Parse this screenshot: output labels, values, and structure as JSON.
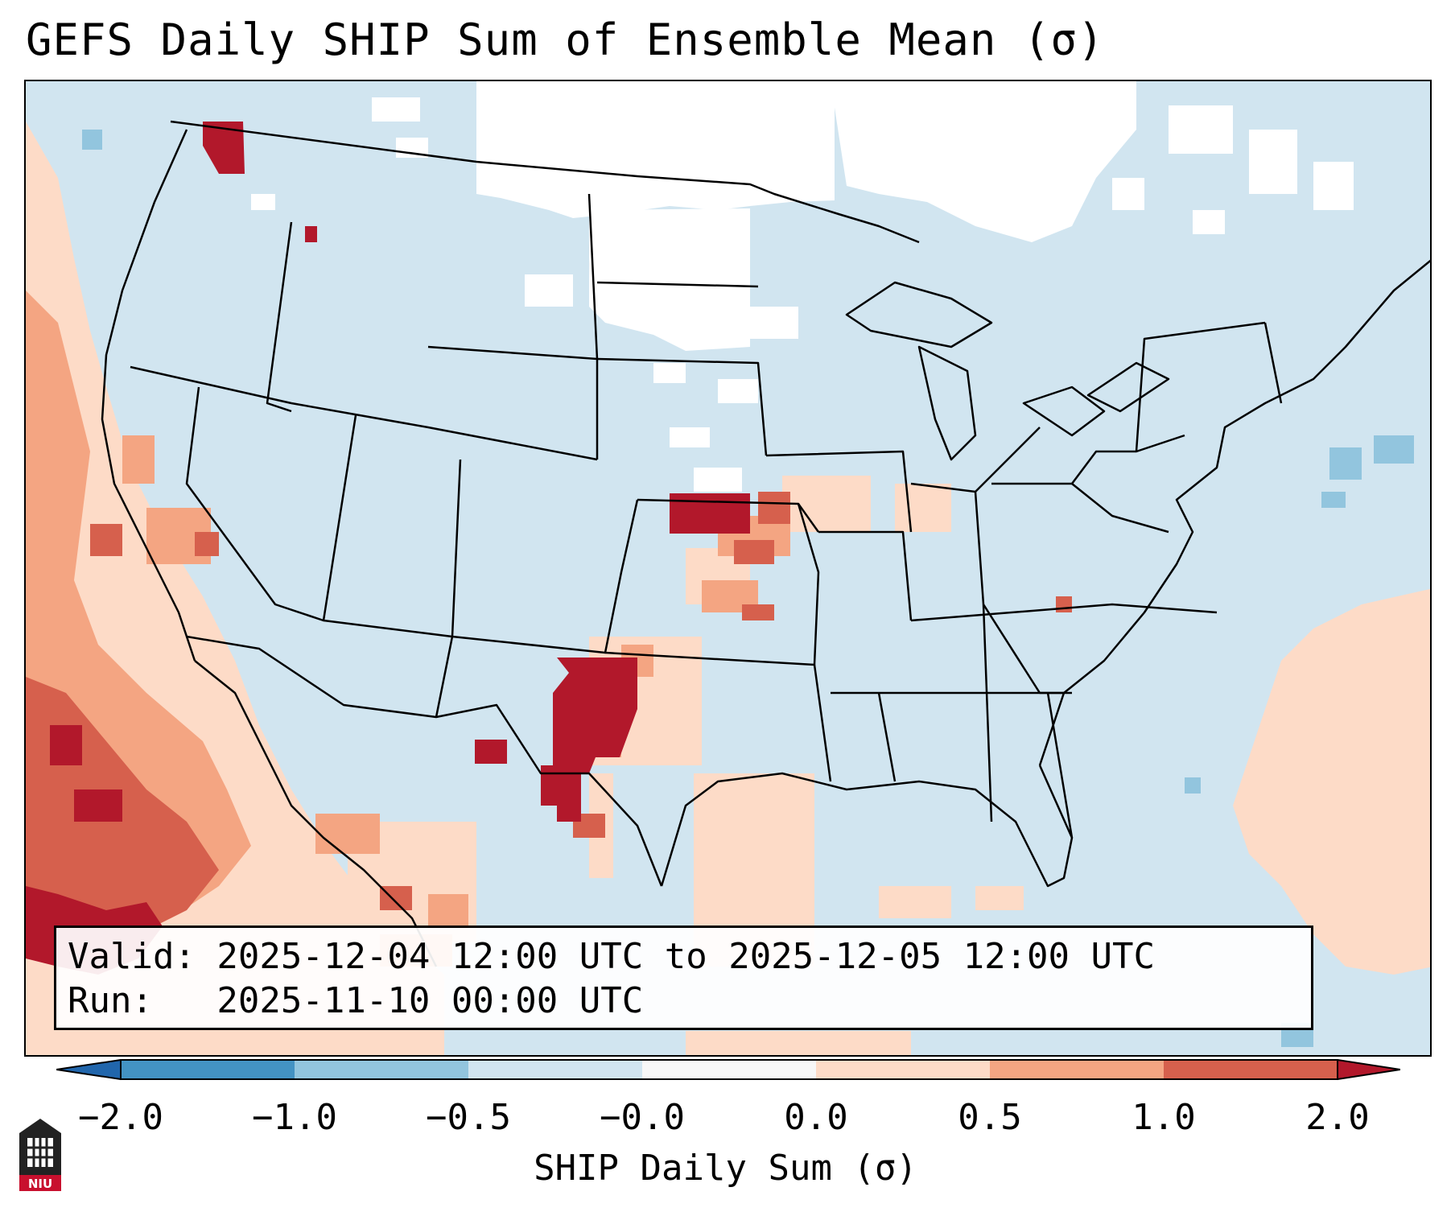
{
  "title": "GEFS Daily SHIP Sum of Ensemble Mean (σ)",
  "info": {
    "valid_line": "Valid: 2025-12-04 12:00 UTC to 2025-12-05 12:00 UTC",
    "run_line": "Run:   2025-11-10 00:00 UTC"
  },
  "colorbar": {
    "label": "SHIP Daily Sum (σ)",
    "ticks": [
      "−2.0",
      "−1.0",
      "−0.5",
      "−0.0",
      "0.0",
      "0.5",
      "1.0",
      "2.0"
    ],
    "colors": {
      "lt_-2": "#2166ac",
      "-2_-1": "#4393c3",
      "-1_-0.5": "#92c5de",
      "-0.5_0": "#d1e5f0",
      "0_band": "#f7f7f7",
      "0_0.5": "#fddbc7",
      "0.5_1": "#f4a582",
      "1_2": "#d6604d",
      "gt_2": "#b2182b"
    }
  },
  "map": {
    "background_value_color": "#d1e5f0",
    "features": [
      "state-borders",
      "country-borders",
      "coastlines"
    ]
  },
  "logo_text": "NIU"
}
